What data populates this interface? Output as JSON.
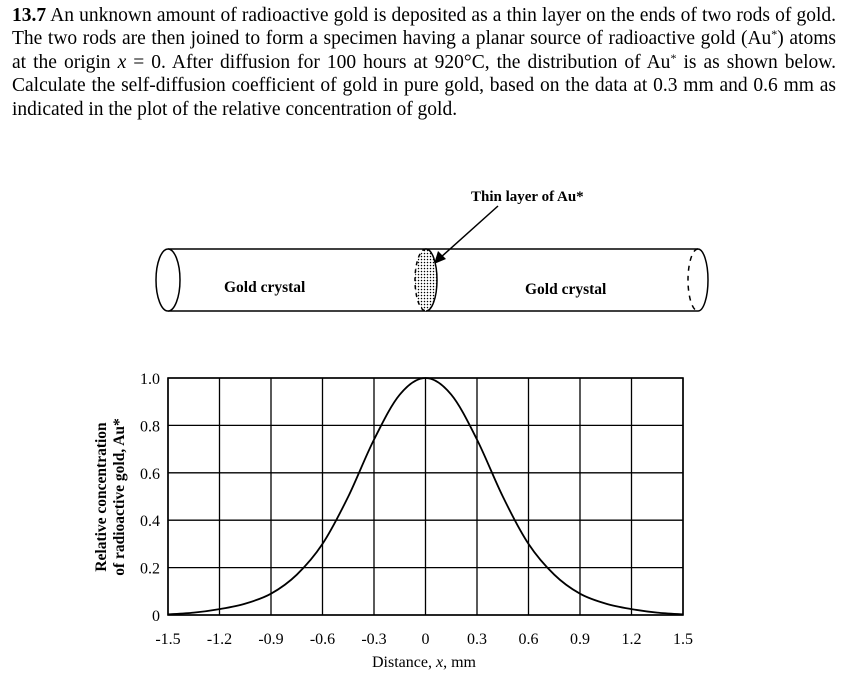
{
  "problem": {
    "number": "13.7",
    "seg1": "An unknown amount of radioactive gold is deposited as a thin layer on the ends of two rods of gold. The two rods are then joined to form a specimen having a planar source of radioactive gold (Au",
    "seg2": ") atoms at the origin ",
    "var_x": "x",
    "seg3": " = 0. After diffusion for 100 hours at 920°C, the distribution of Au",
    "seg4": " is as shown below. Calculate the self-diffusion coefficient of gold in pure gold, based on the data at 0.3 mm and 0.6 mm as indicated in the plot of the relative concentration of gold.",
    "star": "*"
  },
  "diagram": {
    "layer_label": "Thin layer of Au*",
    "left_crystal_label": "Gold crystal",
    "right_crystal_label": "Gold crystal"
  },
  "chart_data": {
    "type": "line",
    "xlabel_prefix": "Distance, ",
    "xlabel_var": "x",
    "xlabel_unit": ", mm",
    "ylabel_line1": "Relative concentration",
    "ylabel_line2": "of radioactive gold, Au*",
    "x_ticks": [
      -1.5,
      -1.2,
      -0.9,
      -0.6,
      -0.3,
      0,
      0.3,
      0.6,
      0.9,
      1.2,
      1.5
    ],
    "x_tick_labels": [
      "-1.5",
      "-1.2",
      "-0.9",
      "-0.6",
      "-0.3",
      "0",
      "0.3",
      "0.6",
      "0.9",
      "1.2",
      "1.5"
    ],
    "y_ticks": [
      0,
      0.2,
      0.4,
      0.6,
      0.8,
      1.0
    ],
    "y_tick_labels": [
      "0",
      "0.2",
      "0.4",
      "0.6",
      "0.8",
      "1.0"
    ],
    "xlim": [
      -1.5,
      1.5
    ],
    "ylim": [
      0,
      1.0
    ],
    "grid": true,
    "series": [
      {
        "x": [
          -1.5,
          -1.35,
          -1.2,
          -1.05,
          -0.9,
          -0.75,
          -0.6,
          -0.45,
          -0.3,
          -0.15,
          0,
          0.15,
          0.3,
          0.45,
          0.6,
          0.75,
          0.9,
          1.05,
          1.2,
          1.35,
          1.5
        ],
        "y": [
          0.003,
          0.01,
          0.025,
          0.048,
          0.09,
          0.17,
          0.3,
          0.5,
          0.74,
          0.93,
          1.0,
          0.93,
          0.74,
          0.5,
          0.3,
          0.17,
          0.09,
          0.048,
          0.025,
          0.01,
          0.003
        ]
      }
    ]
  }
}
